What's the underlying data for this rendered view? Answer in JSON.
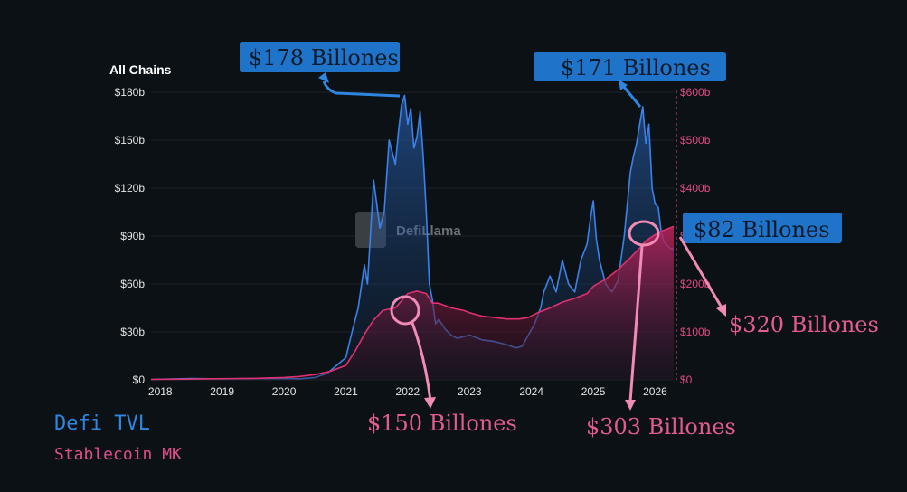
{
  "chart_data": {
    "type": "area",
    "title": "All Chains",
    "x_ticks": [
      "2018",
      "2019",
      "2020",
      "2021",
      "2022",
      "2023",
      "2024",
      "2025",
      "2026"
    ],
    "x_range": [
      2017.85,
      2026.3
    ],
    "y_left": {
      "ticks": [
        "$0",
        "$30b",
        "$60b",
        "$90b",
        "$120b",
        "$150b",
        "$180b"
      ],
      "range": [
        0,
        180
      ]
    },
    "y_right": {
      "ticks": [
        "$0",
        "$100b",
        "$200b",
        "$300b",
        "$400b",
        "$500b",
        "$600b"
      ],
      "range": [
        0,
        600
      ]
    },
    "series": [
      {
        "name": "Defi TVL",
        "axis": "left",
        "color": "#3b82e8",
        "x": [
          2017.85,
          2018.5,
          2019.0,
          2019.5,
          2020.0,
          2020.25,
          2020.5,
          2020.7,
          2020.85,
          2021.0,
          2021.1,
          2021.2,
          2021.3,
          2021.35,
          2021.45,
          2021.55,
          2021.62,
          2021.7,
          2021.8,
          2021.85,
          2021.9,
          2021.95,
          2022.0,
          2022.05,
          2022.1,
          2022.15,
          2022.2,
          2022.25,
          2022.3,
          2022.35,
          2022.4,
          2022.45,
          2022.5,
          2022.6,
          2022.7,
          2022.8,
          2022.9,
          2023.0,
          2023.2,
          2023.4,
          2023.6,
          2023.75,
          2023.85,
          2023.95,
          2024.05,
          2024.15,
          2024.2,
          2024.3,
          2024.4,
          2024.5,
          2024.6,
          2024.7,
          2024.8,
          2024.9,
          2024.95,
          2025.0,
          2025.05,
          2025.1,
          2025.2,
          2025.3,
          2025.4,
          2025.5,
          2025.55,
          2025.6,
          2025.65,
          2025.7,
          2025.75,
          2025.8,
          2025.85,
          2025.9,
          2025.95,
          2026.0,
          2026.05,
          2026.1,
          2026.15,
          2026.2,
          2026.25,
          2026.3
        ],
        "values": [
          0.3,
          0.8,
          0.6,
          0.8,
          0.9,
          0.7,
          1.5,
          4,
          9,
          14,
          30,
          45,
          72,
          60,
          125,
          95,
          105,
          150,
          135,
          155,
          172,
          178,
          160,
          170,
          145,
          152,
          168,
          140,
          105,
          60,
          50,
          35,
          38,
          32,
          28,
          26,
          27,
          28,
          25,
          24,
          22,
          20,
          21,
          28,
          35,
          45,
          55,
          65,
          55,
          75,
          60,
          55,
          75,
          85,
          100,
          112,
          88,
          75,
          60,
          55,
          62,
          90,
          110,
          130,
          140,
          148,
          160,
          171,
          148,
          160,
          120,
          110,
          108,
          92,
          86,
          84,
          82,
          82
        ]
      },
      {
        "name": "Stablecoin MK",
        "axis": "right",
        "color": "#e0306f",
        "x": [
          2017.85,
          2018.5,
          2019.0,
          2019.5,
          2020.0,
          2020.25,
          2020.5,
          2020.75,
          2021.0,
          2021.15,
          2021.3,
          2021.45,
          2021.6,
          2021.8,
          2022.0,
          2022.15,
          2022.3,
          2022.4,
          2022.5,
          2022.7,
          2022.9,
          2023.0,
          2023.2,
          2023.4,
          2023.6,
          2023.8,
          2023.95,
          2024.1,
          2024.3,
          2024.5,
          2024.7,
          2024.9,
          2025.0,
          2025.2,
          2025.4,
          2025.6,
          2025.75,
          2025.85,
          2026.0,
          2026.1,
          2026.2,
          2026.3
        ],
        "values": [
          1,
          1.5,
          2.5,
          3,
          5,
          7,
          11,
          18,
          30,
          60,
          95,
          125,
          145,
          150,
          180,
          185,
          180,
          160,
          160,
          150,
          145,
          140,
          133,
          130,
          127,
          127,
          130,
          140,
          150,
          162,
          170,
          180,
          195,
          210,
          230,
          255,
          275,
          290,
          303,
          310,
          315,
          320
        ]
      }
    ]
  },
  "watermark": "DefiLlama",
  "annotations": {
    "peak_2021": "$178 Billones",
    "peak_2025": "$171 Billones",
    "current_tvl": "$82 Billones",
    "current_stable": "$320 Billones",
    "stable_2022": "$150 Billones",
    "stable_2025": "$303 Billones"
  },
  "legend": {
    "tvl": "Defi TVL",
    "stable": "Stablecoin MK"
  },
  "colors": {
    "background": "#0b1114",
    "tvl_line": "#3b82e8",
    "stable_line": "#e0306f",
    "callout_box": "#1f73c8",
    "pink_annotation": "#e45a92"
  }
}
